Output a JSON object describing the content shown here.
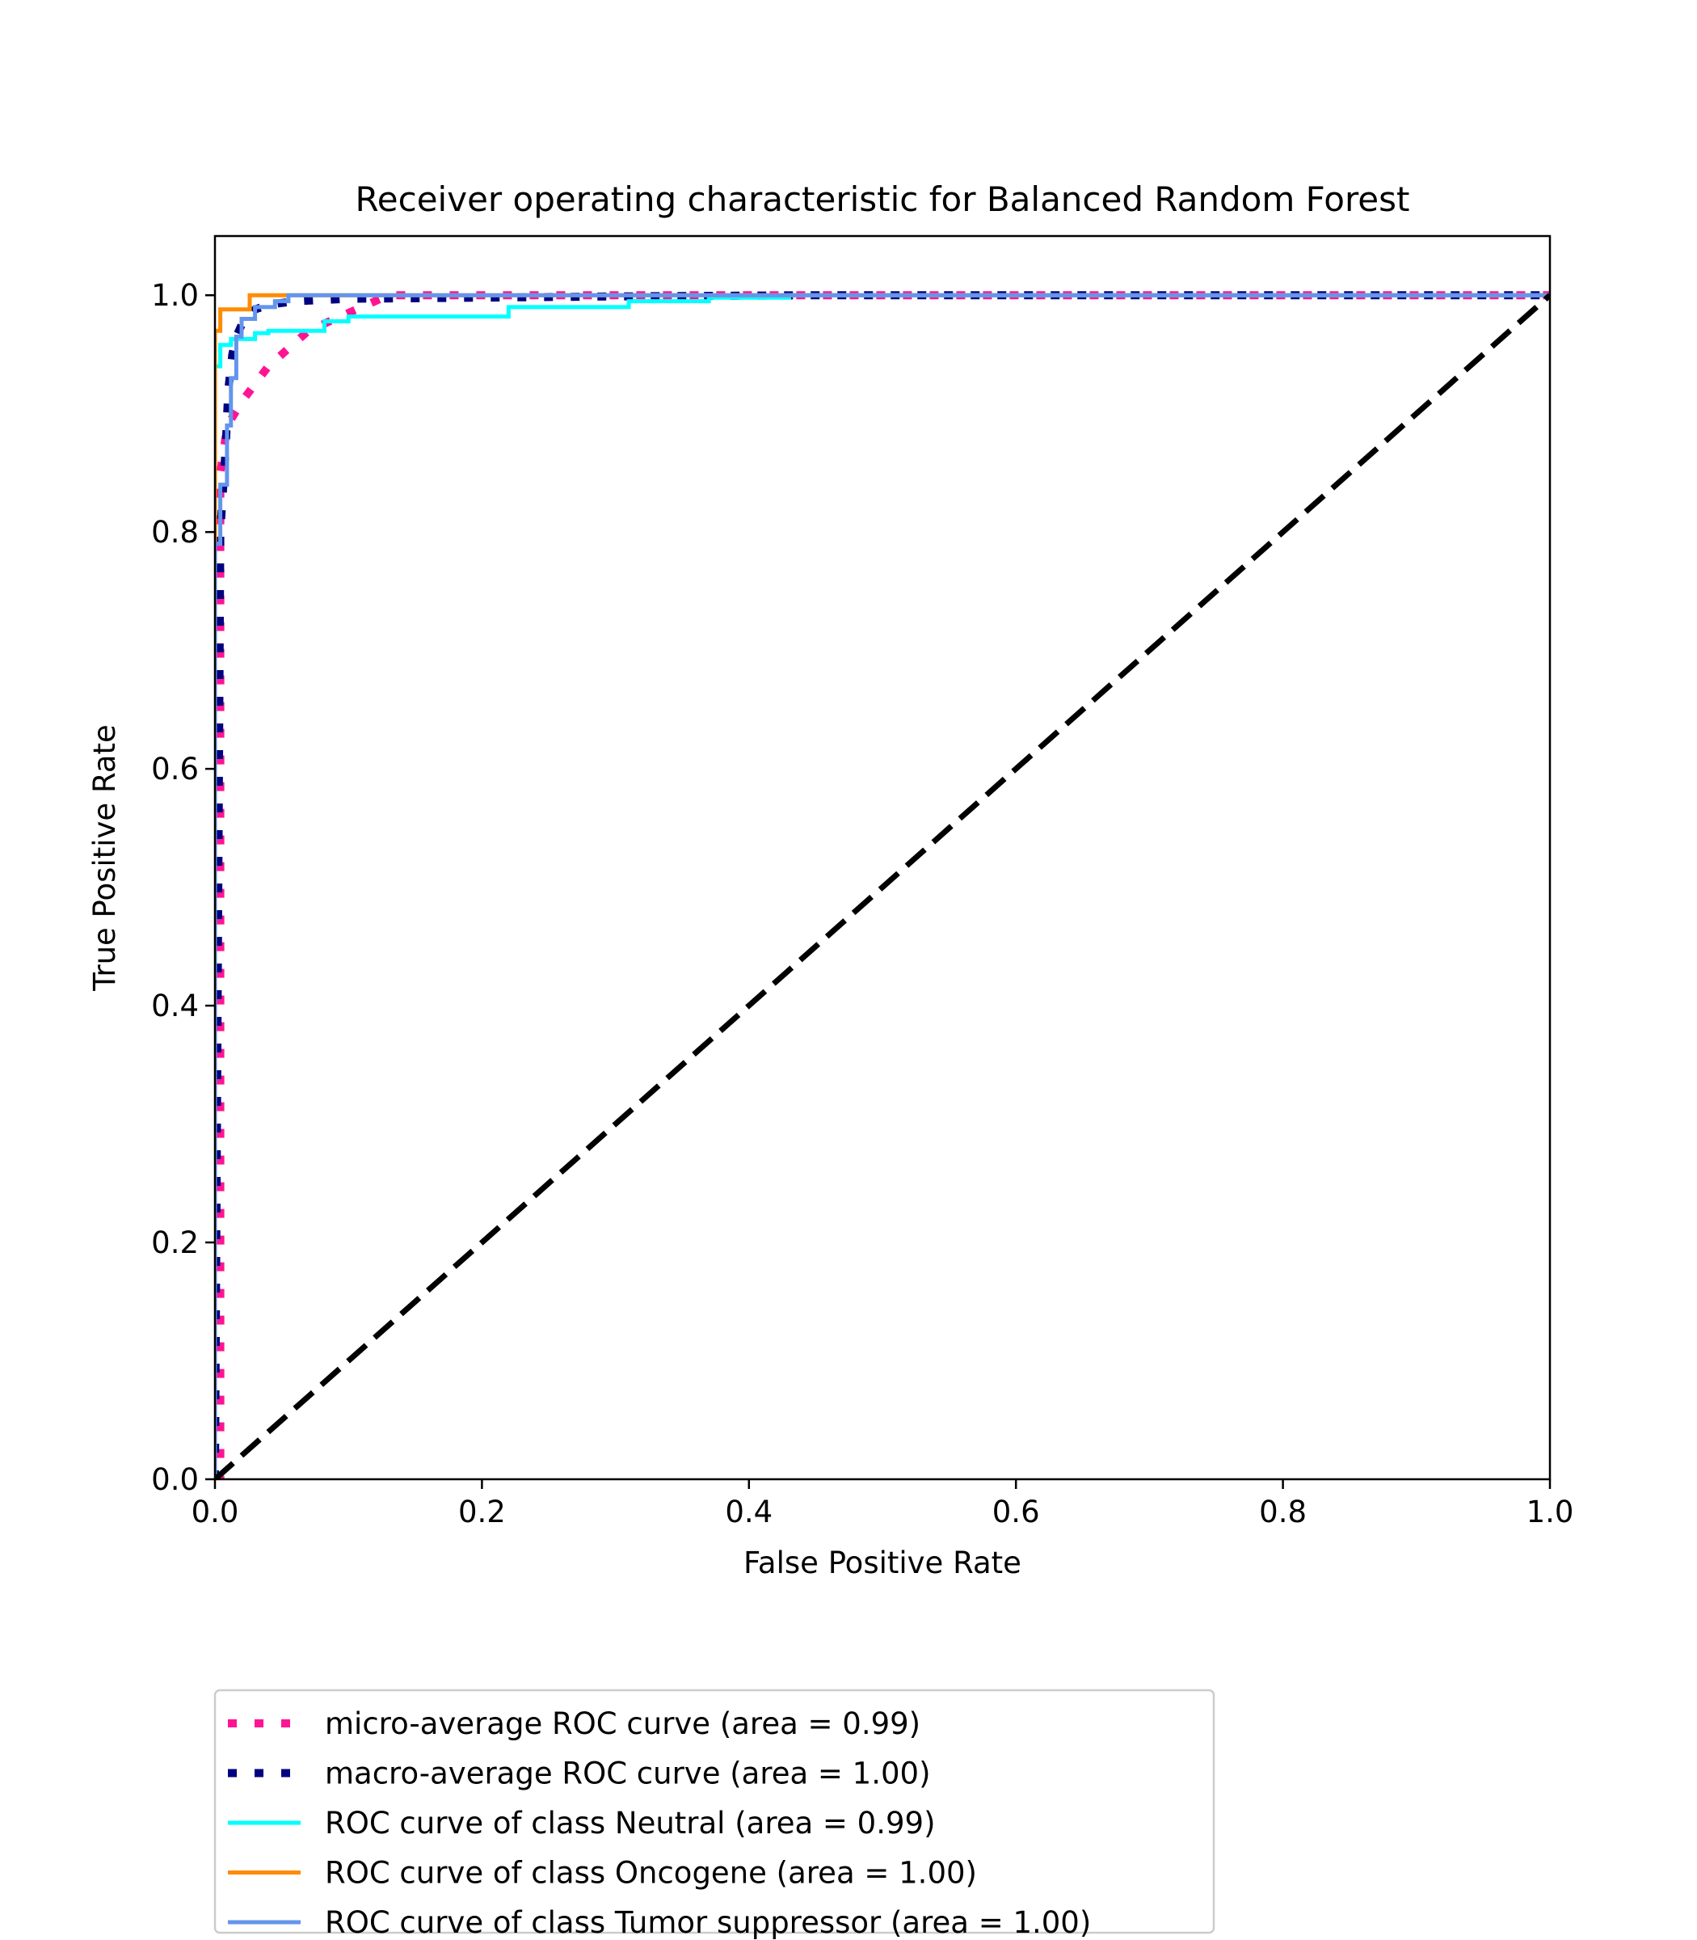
{
  "chart_data": {
    "type": "line",
    "title": "Receiver operating characteristic for Balanced Random Forest",
    "xlabel": "False Positive Rate",
    "ylabel": "True Positive Rate",
    "xlim": [
      0.0,
      1.0
    ],
    "ylim": [
      0.0,
      1.05
    ],
    "xticks": [
      "0.0",
      "0.2",
      "0.4",
      "0.6",
      "0.8",
      "1.0"
    ],
    "yticks": [
      "0.0",
      "0.2",
      "0.4",
      "0.6",
      "0.8",
      "1.0"
    ],
    "grid": false,
    "legend_position": "below the plot, left",
    "series": [
      {
        "name": "micro-average ROC curve (area = 0.99)",
        "color": "#ff1493",
        "style": "dotted",
        "x": [
          0.0,
          0.004,
          0.004,
          0.008,
          0.012,
          0.02,
          0.03,
          0.04,
          0.055,
          0.07,
          0.09,
          0.11,
          0.13,
          0.2,
          1.0
        ],
        "y": [
          0.0,
          0.0,
          0.85,
          0.88,
          0.895,
          0.91,
          0.925,
          0.94,
          0.955,
          0.97,
          0.98,
          0.99,
          1.0,
          1.0,
          1.0
        ]
      },
      {
        "name": "macro-average ROC curve (area = 1.00)",
        "color": "#000080",
        "style": "dotted",
        "x": [
          0.0,
          0.004,
          0.008,
          0.01,
          0.013,
          0.016,
          0.02,
          0.025,
          0.03,
          0.04,
          0.06,
          0.1,
          0.2,
          0.3,
          0.45,
          1.0
        ],
        "y": [
          0.0,
          0.8,
          0.87,
          0.92,
          0.95,
          0.965,
          0.975,
          0.982,
          0.988,
          0.992,
          0.995,
          0.997,
          0.998,
          0.999,
          1.0,
          1.0
        ]
      },
      {
        "name": "ROC curve of class Neutral (area = 0.99)",
        "color": "#00ffff",
        "style": "solid",
        "x": [
          0.0,
          0.0,
          0.004,
          0.004,
          0.012,
          0.012,
          0.03,
          0.03,
          0.04,
          0.04,
          0.082,
          0.082,
          0.1,
          0.1,
          0.22,
          0.22,
          0.31,
          0.31,
          0.37,
          0.37,
          0.43,
          0.43,
          1.0
        ],
        "y": [
          0.0,
          0.94,
          0.94,
          0.958,
          0.958,
          0.963,
          0.963,
          0.968,
          0.968,
          0.97,
          0.97,
          0.978,
          0.978,
          0.982,
          0.982,
          0.99,
          0.99,
          0.995,
          0.995,
          0.998,
          0.998,
          1.0,
          1.0
        ]
      },
      {
        "name": "ROC curve of class Oncogene (area = 1.00)",
        "color": "#ff8c00",
        "style": "solid",
        "x": [
          0.0,
          0.0,
          0.004,
          0.004,
          0.026,
          0.026,
          1.0
        ],
        "y": [
          0.0,
          0.97,
          0.97,
          0.988,
          0.988,
          1.0,
          1.0
        ]
      },
      {
        "name": "ROC curve of class Tumor suppressor (area = 1.00)",
        "color": "#6495ed",
        "style": "solid",
        "x": [
          0.0,
          0.0,
          0.004,
          0.004,
          0.009,
          0.009,
          0.012,
          0.012,
          0.016,
          0.016,
          0.02,
          0.02,
          0.03,
          0.03,
          0.045,
          0.045,
          0.055,
          0.055,
          1.0
        ],
        "y": [
          0.0,
          0.79,
          0.79,
          0.84,
          0.84,
          0.89,
          0.89,
          0.93,
          0.93,
          0.965,
          0.965,
          0.98,
          0.98,
          0.99,
          0.99,
          0.995,
          0.995,
          1.0,
          1.0
        ]
      },
      {
        "name": "",
        "color": "#000000",
        "style": "dashed",
        "x": [
          0.0,
          1.0
        ],
        "y": [
          0.0,
          1.0
        ]
      }
    ]
  }
}
